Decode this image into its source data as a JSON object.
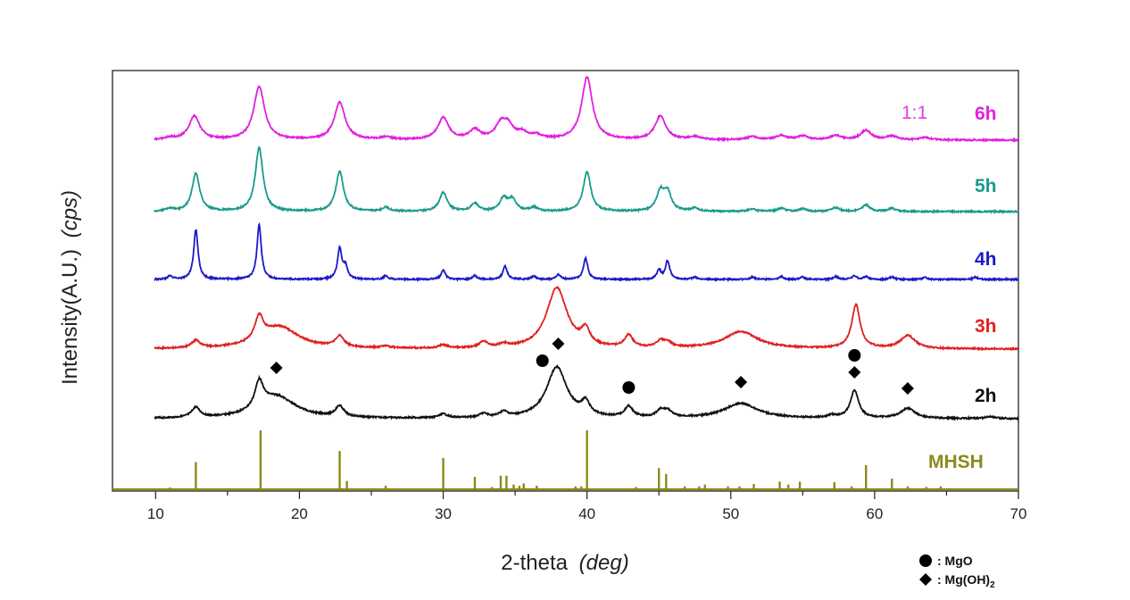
{
  "chart_data": {
    "type": "line",
    "xlabel": "2-theta",
    "xlabel_unit": "(deg)",
    "ylabel": "Intensity(A.U.)",
    "ylabel_unit": "(cps)",
    "xlim": [
      7,
      70
    ],
    "xticks": [
      10,
      20,
      30,
      40,
      50,
      60,
      70
    ],
    "grid": false,
    "annotation_ratio": {
      "text": "1:1",
      "color": "#e040e0"
    },
    "legend": [
      {
        "marker": "circle",
        "text": ": MgO"
      },
      {
        "marker": "diamond",
        "text": ": Mg(OH)",
        "subscript": "2"
      }
    ],
    "series": [
      {
        "name": "6h",
        "color": "#e020e0",
        "baseline": 0.0,
        "peaks": [
          [
            11,
            0.03
          ],
          [
            12.7,
            0.38
          ],
          [
            17.2,
            0.85
          ],
          [
            22.8,
            0.6
          ],
          [
            26,
            0.04
          ],
          [
            30,
            0.35
          ],
          [
            32.2,
            0.15
          ],
          [
            34,
            0.22
          ],
          [
            34.5,
            0.2
          ],
          [
            35.5,
            0.1
          ],
          [
            36.5,
            0.06
          ],
          [
            40,
            1.0
          ],
          [
            45.1,
            0.38
          ],
          [
            47.5,
            0.05
          ],
          [
            51.5,
            0.05
          ],
          [
            53.5,
            0.07
          ],
          [
            55,
            0.06
          ],
          [
            57.3,
            0.07
          ],
          [
            59.4,
            0.15
          ],
          [
            61.2,
            0.06
          ],
          [
            63.5,
            0.04
          ]
        ]
      },
      {
        "name": "5h",
        "color": "#1a9a8c",
        "baseline": 0.0,
        "peaks": [
          [
            11,
            0.04
          ],
          [
            12.8,
            0.6
          ],
          [
            17.2,
            1.0
          ],
          [
            22.8,
            0.63
          ],
          [
            26,
            0.06
          ],
          [
            30,
            0.3
          ],
          [
            32.2,
            0.12
          ],
          [
            34.2,
            0.2
          ],
          [
            34.8,
            0.18
          ],
          [
            36.3,
            0.06
          ],
          [
            40,
            0.62
          ],
          [
            45.1,
            0.3
          ],
          [
            45.6,
            0.28
          ],
          [
            47.5,
            0.05
          ],
          [
            51.5,
            0.04
          ],
          [
            53.5,
            0.05
          ],
          [
            55,
            0.04
          ],
          [
            57.3,
            0.06
          ],
          [
            59.4,
            0.1
          ],
          [
            61.2,
            0.05
          ]
        ]
      },
      {
        "name": "4h",
        "color": "#1a1ac8",
        "baseline": 0.0,
        "peaks": [
          [
            11,
            0.06
          ],
          [
            12.8,
            0.82
          ],
          [
            17.2,
            0.9
          ],
          [
            22.8,
            0.5
          ],
          [
            23.2,
            0.2
          ],
          [
            26,
            0.06
          ],
          [
            30,
            0.15
          ],
          [
            32.2,
            0.06
          ],
          [
            34.3,
            0.22
          ],
          [
            36.3,
            0.05
          ],
          [
            38,
            0.08
          ],
          [
            39.9,
            0.35
          ],
          [
            45,
            0.15
          ],
          [
            45.6,
            0.3
          ],
          [
            47.5,
            0.04
          ],
          [
            51.5,
            0.04
          ],
          [
            53.5,
            0.05
          ],
          [
            55,
            0.04
          ],
          [
            57.3,
            0.05
          ],
          [
            58.6,
            0.06
          ],
          [
            59.4,
            0.05
          ],
          [
            61.2,
            0.04
          ],
          [
            63.5,
            0.03
          ],
          [
            67,
            0.04
          ]
        ]
      },
      {
        "name": "3h",
        "color": "#e02020",
        "baseline": 0.0,
        "peaks": [
          [
            12.8,
            0.12
          ],
          [
            17.2,
            0.38
          ],
          [
            18.6,
            0.36
          ],
          [
            22.8,
            0.18
          ],
          [
            26,
            0.03
          ],
          [
            30,
            0.05
          ],
          [
            32.8,
            0.1
          ],
          [
            34.2,
            0.05
          ],
          [
            37.9,
            1.0
          ],
          [
            39.9,
            0.25
          ],
          [
            42.9,
            0.2
          ],
          [
            45.1,
            0.1
          ],
          [
            45.6,
            0.08
          ],
          [
            50.7,
            0.28
          ],
          [
            58.7,
            0.72
          ],
          [
            62.3,
            0.22
          ]
        ]
      },
      {
        "name": "2h",
        "color": "#111111",
        "baseline": 0.0,
        "peaks": [
          [
            12.8,
            0.16
          ],
          [
            17.2,
            0.42
          ],
          [
            18.4,
            0.35
          ],
          [
            22.8,
            0.17
          ],
          [
            30,
            0.06
          ],
          [
            32.8,
            0.06
          ],
          [
            34.2,
            0.08
          ],
          [
            37.9,
            0.82
          ],
          [
            39.9,
            0.2
          ],
          [
            42.9,
            0.17
          ],
          [
            45.1,
            0.1
          ],
          [
            45.6,
            0.1
          ],
          [
            50.7,
            0.24
          ],
          [
            57,
            0.04
          ],
          [
            58.6,
            0.44
          ],
          [
            62.3,
            0.16
          ],
          [
            68,
            0.03
          ]
        ]
      }
    ],
    "markers": [
      {
        "type": "diamond",
        "x": 18.4,
        "series": "2h"
      },
      {
        "type": "circle",
        "x": 36.9,
        "series": "2h"
      },
      {
        "type": "diamond",
        "x": 38.0,
        "series": "3h"
      },
      {
        "type": "circle",
        "x": 42.9,
        "series": "2h"
      },
      {
        "type": "diamond",
        "x": 50.7,
        "series": "2h"
      },
      {
        "type": "circle",
        "x": 58.6,
        "series": "2h"
      },
      {
        "type": "diamond",
        "x": 58.6,
        "series": "2h"
      },
      {
        "type": "diamond",
        "x": 62.3,
        "series": "2h"
      }
    ],
    "reference": {
      "name": "MHSH",
      "color": "#8a8a1a",
      "sticks": [
        [
          11,
          0.03
        ],
        [
          12.8,
          0.46
        ],
        [
          17.3,
          1.0
        ],
        [
          22.8,
          0.65
        ],
        [
          23.3,
          0.14
        ],
        [
          26,
          0.06
        ],
        [
          30,
          0.53
        ],
        [
          32.2,
          0.21
        ],
        [
          33.4,
          0.04
        ],
        [
          34,
          0.23
        ],
        [
          34.4,
          0.23
        ],
        [
          34.9,
          0.08
        ],
        [
          35.3,
          0.06
        ],
        [
          35.6,
          0.1
        ],
        [
          36.5,
          0.06
        ],
        [
          39.2,
          0.05
        ],
        [
          39.6,
          0.05
        ],
        [
          40,
          1.0
        ],
        [
          43.4,
          0.04
        ],
        [
          45,
          0.36
        ],
        [
          45.5,
          0.26
        ],
        [
          46.8,
          0.05
        ],
        [
          47.8,
          0.05
        ],
        [
          48.2,
          0.08
        ],
        [
          49.8,
          0.05
        ],
        [
          50.6,
          0.05
        ],
        [
          51.6,
          0.09
        ],
        [
          53.4,
          0.13
        ],
        [
          54,
          0.08
        ],
        [
          54.8,
          0.13
        ],
        [
          57.2,
          0.12
        ],
        [
          58.4,
          0.05
        ],
        [
          59.4,
          0.41
        ],
        [
          61.2,
          0.18
        ],
        [
          62.3,
          0.05
        ],
        [
          63.6,
          0.04
        ],
        [
          64.6,
          0.05
        ]
      ]
    }
  }
}
